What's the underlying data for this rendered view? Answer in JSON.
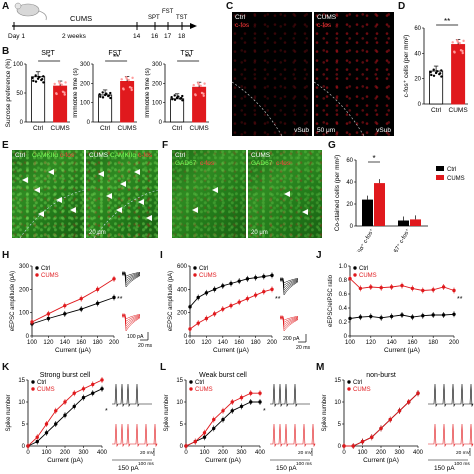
{
  "panels": {
    "A": "A",
    "B": "B",
    "C": "C",
    "D": "D",
    "E": "E",
    "F": "F",
    "G": "G",
    "H": "H",
    "I": "I",
    "J": "J",
    "K": "K",
    "L": "L",
    "M": "M"
  },
  "timeline": {
    "day_start": "Day 1",
    "cums": "CUMS",
    "duration": "2 weeks",
    "ticks": [
      "14",
      "16",
      "17",
      "18"
    ],
    "tests": [
      "SPT",
      "FST",
      "TST"
    ]
  },
  "groups": {
    "ctrl": "Ctrl",
    "cums": "CUMS"
  },
  "colors": {
    "ctrl": "#000000",
    "cums": "#e0191d"
  },
  "micro_c": {
    "ctrl_label": "Ctrl",
    "marker": "c-fos",
    "cums_label": "CUMS",
    "vsub": "vSub",
    "scale": "50 μm"
  },
  "micro_e": {
    "ctrl_label": "Ctrl",
    "marker1": "CAMKIIα",
    "marker2": "c-fos",
    "cums_label": "CUMS",
    "scale": "20 μm"
  },
  "micro_f": {
    "ctrl_label": "Ctrl",
    "marker1": "GAD67",
    "marker2": "c-fos",
    "cums_label": "CUMS",
    "scale": "20 μm"
  },
  "chart_data": [
    {
      "panel": "B",
      "type": "bar",
      "title": "SPT",
      "ylabel": "Sucrose preference (%)",
      "categories": [
        "Ctrl",
        "CUMS"
      ],
      "values": [
        78,
        62
      ],
      "ylim": [
        0,
        100
      ],
      "yticks": [
        "0",
        "50",
        "100"
      ],
      "sig": "*"
    },
    {
      "panel": "B",
      "type": "bar",
      "title": "FST",
      "ylabel": "Immobile time (s)",
      "categories": [
        "Ctrl",
        "CUMS"
      ],
      "values": [
        140,
        210
      ],
      "ylim": [
        0,
        300
      ],
      "yticks": [
        "0",
        "100",
        "200",
        "300"
      ],
      "sig": "**"
    },
    {
      "panel": "B",
      "type": "bar",
      "title": "TST",
      "ylabel": "Immobile time (s)",
      "categories": [
        "Ctrl",
        "CUMS"
      ],
      "values": [
        120,
        180
      ],
      "ylim": [
        0,
        300
      ],
      "yticks": [
        "0",
        "100",
        "200",
        "300"
      ],
      "sig": "**"
    },
    {
      "panel": "D",
      "type": "bar",
      "ylabel": "c-fos⁺ cells (per mm²)",
      "categories": [
        "Ctrl",
        "CUMS"
      ],
      "values": [
        26,
        47
      ],
      "ylim": [
        0,
        60
      ],
      "yticks": [
        "0",
        "20",
        "40",
        "60"
      ],
      "sig": "**"
    },
    {
      "panel": "G",
      "type": "bar",
      "ylabel": "Co-stained cells (per mm²)",
      "categories": [
        "CAMKIIα⁺ c-fos⁺",
        "GAD67⁺ c-fos⁺"
      ],
      "series": [
        {
          "name": "Ctrl",
          "values": [
            24,
            5
          ]
        },
        {
          "name": "CUMS",
          "values": [
            39,
            6
          ]
        }
      ],
      "ylim": [
        0,
        60
      ],
      "yticks": [
        "0",
        "20",
        "40",
        "60"
      ],
      "sig": "*",
      "legend": "top-right"
    },
    {
      "panel": "H",
      "type": "line",
      "xlabel": "Current (μA)",
      "ylabel": "eEPSC amplitude (pA)",
      "x": [
        100,
        120,
        140,
        160,
        180,
        200
      ],
      "series": [
        {
          "name": "Ctrl",
          "values": [
            52,
            75,
            95,
            115,
            140,
            165
          ]
        },
        {
          "name": "CUMS",
          "values": [
            60,
            95,
            130,
            160,
            200,
            245
          ]
        }
      ],
      "ylim": [
        0,
        300
      ],
      "xticks": [
        "100",
        "120",
        "140",
        "160",
        "180",
        "200"
      ],
      "yticks": [
        "0",
        "100",
        "200",
        "300"
      ],
      "sig": "**",
      "scale_y": "100 pA",
      "scale_x": "20 ms"
    },
    {
      "panel": "I",
      "type": "line",
      "xlabel": "Current (μA)",
      "ylabel": "eEPSC amplitude (pA)",
      "x": [
        100,
        110,
        120,
        130,
        140,
        150,
        160,
        170,
        180,
        190,
        200
      ],
      "series": [
        {
          "name": "Ctrl",
          "values": [
            250,
            330,
            370,
            400,
            430,
            450,
            470,
            490,
            500,
            510,
            520
          ]
        },
        {
          "name": "CUMS",
          "values": [
            60,
            110,
            150,
            190,
            230,
            260,
            290,
            320,
            350,
            380,
            400
          ]
        }
      ],
      "ylim": [
        0,
        600
      ],
      "xticks": [
        "100",
        "120",
        "140",
        "160",
        "180",
        "200"
      ],
      "yticks": [
        "0",
        "200",
        "400",
        "600"
      ],
      "sig": "**",
      "scale_y": "200 pA",
      "scale_x": "20 ms"
    },
    {
      "panel": "J",
      "type": "line",
      "xlabel": "Current (μA)",
      "ylabel": "eEPSC/eIPSC ratio",
      "x": [
        100,
        110,
        120,
        130,
        140,
        150,
        160,
        170,
        180,
        190,
        200
      ],
      "series": [
        {
          "name": "Ctrl",
          "values": [
            0.25,
            0.27,
            0.28,
            0.26,
            0.28,
            0.3,
            0.27,
            0.29,
            0.3,
            0.3,
            0.31
          ]
        },
        {
          "name": "CUMS",
          "values": [
            0.82,
            0.68,
            0.7,
            0.69,
            0.7,
            0.72,
            0.68,
            0.65,
            0.66,
            0.7,
            0.65
          ]
        }
      ],
      "ylim": [
        0,
        1
      ],
      "xticks": [
        "100",
        "120",
        "140",
        "160",
        "180",
        "200"
      ],
      "yticks": [
        "0",
        "0.2",
        "0.4",
        "0.6",
        "0.8",
        "1.0"
      ],
      "sig": "**"
    },
    {
      "panel": "K",
      "type": "line",
      "title": "Strong burst cell",
      "xlabel": "Current (pA)",
      "ylabel": "Spike number",
      "x": [
        0,
        50,
        100,
        150,
        200,
        250,
        300,
        350,
        400
      ],
      "series": [
        {
          "name": "Ctrl",
          "values": [
            0,
            1,
            3,
            5,
            7,
            9,
            11,
            12,
            13
          ]
        },
        {
          "name": "CUMS",
          "values": [
            0,
            2,
            5,
            8,
            10,
            12,
            13,
            14,
            15
          ]
        }
      ],
      "ylim": [
        0,
        15
      ],
      "xticks": [
        "0",
        "100",
        "200",
        "300",
        "400"
      ],
      "yticks": [
        "0",
        "5",
        "10",
        "15"
      ],
      "sig": "*",
      "trace_label": "150 pA",
      "scale_y": "20 mV",
      "scale_x": "100 ms"
    },
    {
      "panel": "L",
      "type": "line",
      "title": "Weak burst cell",
      "xlabel": "Current (pA)",
      "ylabel": "Spike number",
      "x": [
        0,
        50,
        100,
        150,
        200,
        250,
        300,
        350,
        400
      ],
      "series": [
        {
          "name": "Ctrl",
          "values": [
            0,
            1,
            2,
            4,
            6,
            8,
            9,
            10,
            10
          ]
        },
        {
          "name": "CUMS",
          "values": [
            0,
            1,
            3,
            6,
            8,
            10,
            11,
            12,
            12
          ]
        }
      ],
      "ylim": [
        0,
        15
      ],
      "xticks": [
        "0",
        "100",
        "200",
        "300",
        "400"
      ],
      "yticks": [
        "0",
        "5",
        "10",
        "15"
      ],
      "sig": "*",
      "trace_label": "150 pA",
      "scale_y": "20 mV",
      "scale_x": "100 ms"
    },
    {
      "panel": "M",
      "type": "line",
      "title": "non-burst",
      "xlabel": "Current (pA)",
      "ylabel": "Spike number",
      "x": [
        0,
        50,
        100,
        150,
        200,
        250,
        300,
        350,
        400
      ],
      "series": [
        {
          "name": "Ctrl",
          "values": [
            0,
            0,
            1,
            2,
            4,
            6,
            8,
            10,
            12
          ]
        },
        {
          "name": "CUMS",
          "values": [
            0,
            0,
            1,
            2,
            4,
            6,
            8,
            10,
            12
          ]
        }
      ],
      "ylim": [
        0,
        15
      ],
      "xticks": [
        "0",
        "100",
        "200",
        "300",
        "400"
      ],
      "yticks": [
        "0",
        "5",
        "10",
        "15"
      ],
      "trace_label": "150 pA",
      "scale_y": "20 mV",
      "scale_x": "100 ms"
    }
  ]
}
